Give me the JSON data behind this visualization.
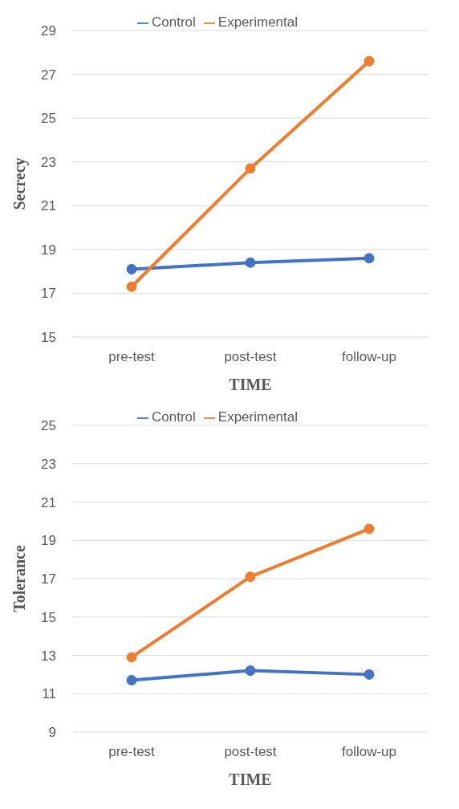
{
  "chart_data": [
    {
      "type": "line",
      "ylabel": "Secrecy",
      "xlabel": "TIME",
      "categories": [
        "pre-test",
        "post-test",
        "follow-up"
      ],
      "series": [
        {
          "name": "Control",
          "color": "#4472c4",
          "values": [
            18.1,
            18.4,
            18.6
          ]
        },
        {
          "name": "Experimental",
          "color": "#ed7d31",
          "values": [
            17.3,
            22.7,
            27.6
          ]
        }
      ],
      "ylim": [
        15,
        29
      ],
      "yticks": [
        15,
        17,
        19,
        21,
        23,
        25,
        27,
        29
      ],
      "grid": "y",
      "legend": "top",
      "marker": "circle",
      "line_style": "solid"
    },
    {
      "type": "line",
      "ylabel": "Tolerance",
      "xlabel": "TIME",
      "categories": [
        "pre-test",
        "post-test",
        "follow-up"
      ],
      "series": [
        {
          "name": "Control",
          "color": "#4472c4",
          "values": [
            11.7,
            12.2,
            12.0
          ]
        },
        {
          "name": "Experimental",
          "color": "#ed7d31",
          "values": [
            12.9,
            17.1,
            19.6
          ]
        }
      ],
      "ylim": [
        9,
        25
      ],
      "yticks": [
        9,
        11,
        13,
        15,
        17,
        19,
        21,
        23,
        25
      ],
      "grid": "y",
      "legend": "top",
      "marker": "circle",
      "line_style": "solid"
    }
  ]
}
